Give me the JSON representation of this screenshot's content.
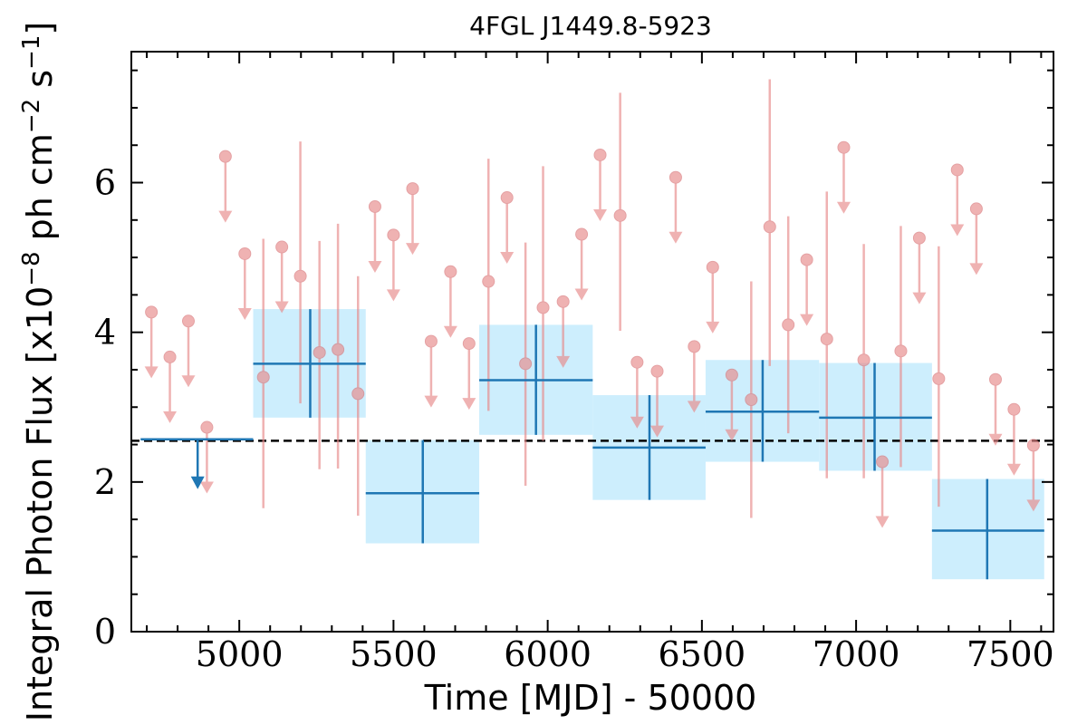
{
  "chart_data": {
    "type": "scatter",
    "title": "4FGL J1449.8-5923",
    "xlabel": "Time [MJD] - 50000",
    "ylabel": "Integral Photon Flux [x10^-8 ph cm^-2 s^-1]",
    "ylabel_parts": {
      "pre": "Integral Photon Flux [x10",
      "exp1": "−8",
      "mid1": " ph cm",
      "exp2": "−2",
      "mid2": " s",
      "exp3": "−1",
      "post": "]"
    },
    "xlim": [
      4650,
      7640
    ],
    "ylim": [
      0,
      7.75
    ],
    "x_ticks": [
      5000,
      5500,
      6000,
      6500,
      7000,
      7500
    ],
    "x_tick_labels": [
      "5000",
      "5500",
      "6000",
      "6500",
      "7000",
      "7500"
    ],
    "y_ticks": [
      0,
      2,
      4,
      6
    ],
    "y_tick_labels": [
      "0",
      "2",
      "4",
      "6"
    ],
    "grid": false,
    "reference_level": 2.55,
    "colors": {
      "short_bins": "#e8898a",
      "long_bins_line": "#1f77b4",
      "long_bins_fill": "#cdeefd",
      "reference": "#000000"
    },
    "series": [
      {
        "description_role": "short_bins",
        "detections": [
          {
            "x": 5078,
            "y": 3.4,
            "ylo": 1.65,
            "yhi": 5.25
          },
          {
            "x": 5198,
            "y": 4.75,
            "ylo": 3.05,
            "yhi": 6.55
          },
          {
            "x": 5260,
            "y": 3.73,
            "ylo": 2.17,
            "yhi": 5.22
          },
          {
            "x": 5320,
            "y": 3.77,
            "ylo": 2.18,
            "yhi": 5.45
          },
          {
            "x": 5385,
            "y": 3.18,
            "ylo": 1.55,
            "yhi": 4.75
          },
          {
            "x": 5808,
            "y": 4.68,
            "ylo": 2.95,
            "yhi": 6.32
          },
          {
            "x": 5928,
            "y": 3.58,
            "ylo": 1.95,
            "yhi": 5.2
          },
          {
            "x": 5985,
            "y": 4.33,
            "ylo": 2.55,
            "yhi": 6.22
          },
          {
            "x": 6235,
            "y": 5.56,
            "ylo": 4.02,
            "yhi": 7.2
          },
          {
            "x": 6660,
            "y": 3.1,
            "ylo": 1.52,
            "yhi": 4.68
          },
          {
            "x": 6720,
            "y": 5.41,
            "ylo": 3.55,
            "yhi": 7.38
          },
          {
            "x": 6780,
            "y": 4.1,
            "ylo": 2.65,
            "yhi": 5.55
          },
          {
            "x": 6905,
            "y": 3.91,
            "ylo": 2.05,
            "yhi": 5.88
          },
          {
            "x": 7025,
            "y": 3.63,
            "ylo": 2.05,
            "yhi": 5.18
          },
          {
            "x": 7145,
            "y": 3.75,
            "ylo": 2.2,
            "yhi": 5.42
          },
          {
            "x": 7268,
            "y": 3.38,
            "ylo": 1.67,
            "yhi": 5.15
          }
        ],
        "upper_limits": [
          {
            "x": 4715,
            "y": 4.27
          },
          {
            "x": 4775,
            "y": 3.67
          },
          {
            "x": 4835,
            "y": 4.15
          },
          {
            "x": 4895,
            "y": 2.73
          },
          {
            "x": 4955,
            "y": 6.35
          },
          {
            "x": 5018,
            "y": 5.05
          },
          {
            "x": 5138,
            "y": 5.14
          },
          {
            "x": 5440,
            "y": 5.68
          },
          {
            "x": 5500,
            "y": 5.3
          },
          {
            "x": 5562,
            "y": 5.92
          },
          {
            "x": 5622,
            "y": 3.88
          },
          {
            "x": 5685,
            "y": 4.81
          },
          {
            "x": 5745,
            "y": 3.85
          },
          {
            "x": 5868,
            "y": 5.8
          },
          {
            "x": 6050,
            "y": 4.41
          },
          {
            "x": 6110,
            "y": 5.31
          },
          {
            "x": 6170,
            "y": 6.37
          },
          {
            "x": 6290,
            "y": 3.6
          },
          {
            "x": 6355,
            "y": 3.48
          },
          {
            "x": 6415,
            "y": 6.07
          },
          {
            "x": 6475,
            "y": 3.81
          },
          {
            "x": 6535,
            "y": 4.87
          },
          {
            "x": 6597,
            "y": 3.43
          },
          {
            "x": 6840,
            "y": 4.97
          },
          {
            "x": 6960,
            "y": 6.47
          },
          {
            "x": 7085,
            "y": 2.27
          },
          {
            "x": 7205,
            "y": 5.26
          },
          {
            "x": 7328,
            "y": 6.17
          },
          {
            "x": 7390,
            "y": 5.65
          },
          {
            "x": 7452,
            "y": 3.37
          },
          {
            "x": 7512,
            "y": 2.97
          },
          {
            "x": 7575,
            "y": 2.49
          }
        ]
      },
      {
        "description_role": "long_bins",
        "upper_limits": [
          {
            "x": 4865,
            "y": 2.57,
            "xlo": 4680,
            "xhi": 5045
          }
        ],
        "bins": [
          {
            "x": 5230,
            "xlo": 5045,
            "xhi": 5410,
            "y": 3.58,
            "ylo": 2.86,
            "yhi": 4.31
          },
          {
            "x": 5595,
            "xlo": 5410,
            "xhi": 5778,
            "y": 1.85,
            "ylo": 1.18,
            "yhi": 2.56
          },
          {
            "x": 5962,
            "xlo": 5778,
            "xhi": 6146,
            "y": 3.36,
            "ylo": 2.63,
            "yhi": 4.1
          },
          {
            "x": 6330,
            "xlo": 6146,
            "xhi": 6512,
            "y": 2.46,
            "ylo": 1.76,
            "yhi": 3.16
          },
          {
            "x": 6697,
            "xlo": 6512,
            "xhi": 6880,
            "y": 2.94,
            "ylo": 2.27,
            "yhi": 3.63
          },
          {
            "x": 7060,
            "xlo": 6880,
            "xhi": 7246,
            "y": 2.86,
            "ylo": 2.15,
            "yhi": 3.59
          },
          {
            "x": 7425,
            "xlo": 7246,
            "xhi": 7610,
            "y": 1.35,
            "ylo": 0.7,
            "yhi": 2.04
          }
        ]
      }
    ]
  }
}
